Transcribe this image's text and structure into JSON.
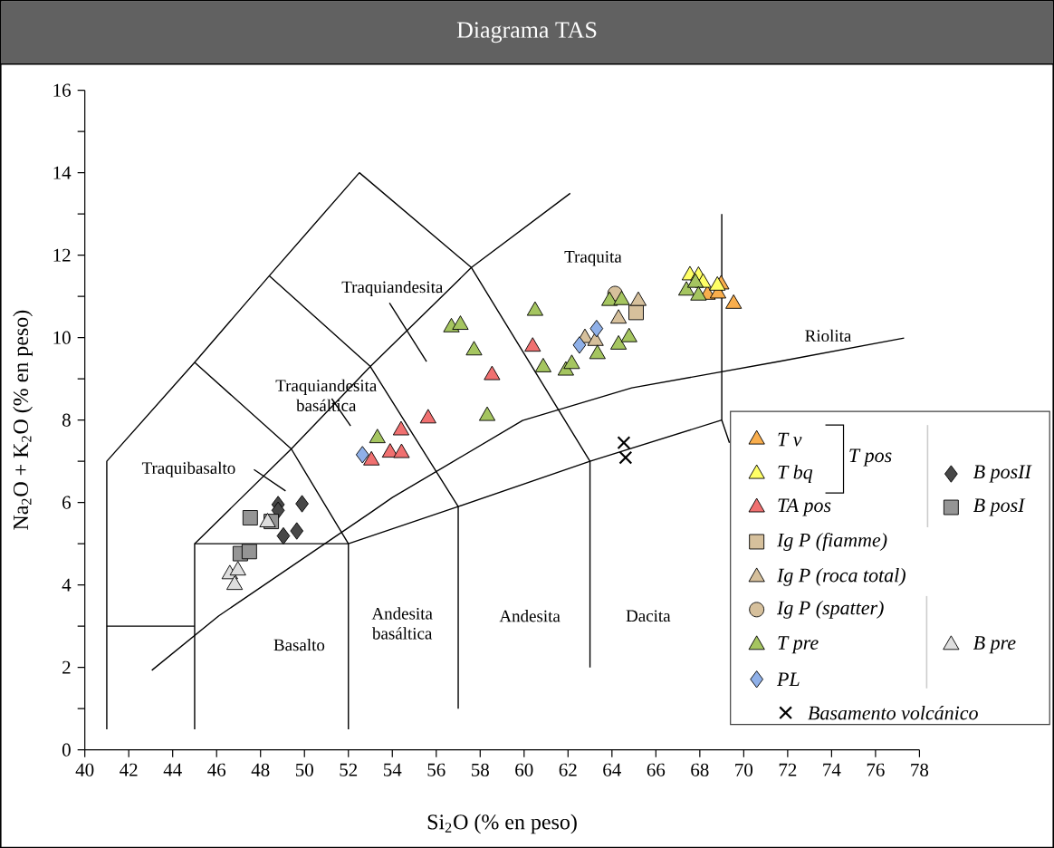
{
  "chart_data": {
    "type": "scatter",
    "title": "Diagrama TAS",
    "xlabel": "Si$_{2}$O (% en peso)",
    "ylabel": "Na$_{2}$O + K$_{2}$O (% en peso)",
    "xlim": [
      40,
      78
    ],
    "ylim": [
      0,
      16
    ],
    "xticks": [
      40,
      42,
      44,
      46,
      48,
      50,
      52,
      54,
      56,
      58,
      60,
      62,
      64,
      66,
      68,
      70,
      72,
      74,
      76,
      78
    ],
    "yticks": [
      0,
      {
        "value": 1,
        "label": null
      },
      2,
      {
        "value": 3,
        "label": null
      },
      4,
      {
        "value": 5,
        "label": null
      },
      6,
      {
        "value": 7,
        "label": null
      },
      8,
      {
        "value": 9,
        "label": null
      },
      10,
      {
        "value": 11,
        "label": null
      },
      12,
      {
        "value": 13,
        "label": null
      },
      14,
      {
        "value": 15,
        "label": null
      },
      16
    ],
    "legend": "bottom right",
    "annotations": [
      "Traquita",
      "Traquiandesita",
      "Traquiandesita basáltica",
      "Traquibasalto",
      "Riolita",
      "Basalto",
      "Andesita basáltica",
      "Andesita",
      "Dacita",
      "T pos"
    ],
    "series": [
      {
        "type": "line",
        "color": "#000000",
        "marker": "none",
        "x": [
          41,
          41,
          45,
          48.4,
          52.5,
          57.6,
          63,
          63
        ],
        "values": [
          0.5,
          7,
          9.4,
          11.5,
          14,
          11.7,
          7,
          2
        ]
      },
      {
        "type": "line",
        "color": "#000000",
        "marker": "none",
        "x": [
          41,
          45
        ],
        "values": [
          3,
          3
        ]
      },
      {
        "type": "line",
        "color": "#000000",
        "marker": "none",
        "x": [
          45,
          45,
          52,
          52
        ],
        "values": [
          0.5,
          5,
          5,
          0.5
        ]
      },
      {
        "type": "line",
        "color": "#000000",
        "marker": "none",
        "x": [
          45,
          49.4,
          52
        ],
        "values": [
          9.4,
          7.3,
          5
        ]
      },
      {
        "type": "line",
        "color": "#000000",
        "marker": "none",
        "x": [
          45,
          49.4,
          53,
          57.6,
          62.1
        ],
        "values": [
          5,
          7.3,
          9.3,
          11.7,
          13.5
        ]
      },
      {
        "type": "line",
        "color": "#000000",
        "marker": "none",
        "x": [
          52,
          57,
          63,
          69,
          69.35
        ],
        "values": [
          5,
          5.9,
          7,
          8,
          7.45
        ]
      },
      {
        "type": "line",
        "color": "#000000",
        "marker": "none",
        "x": [
          48.4,
          53,
          57,
          57
        ],
        "values": [
          11.5,
          9.3,
          5.9,
          1
        ]
      },
      {
        "type": "line",
        "color": "#000000",
        "marker": "none",
        "x": [
          69,
          69
        ],
        "values": [
          8,
          13
        ]
      },
      {
        "type": "line",
        "color": "#000000",
        "marker": "none",
        "x": [
          43.05,
          46.1,
          53.05,
          54,
          59.93,
          64.9,
          71.6,
          77.3
        ],
        "values": [
          1.93,
          3.25,
          5.77,
          6.12,
          7.99,
          8.78,
          9.42,
          9.99
        ]
      },
      {
        "type": "line",
        "color": "#000000",
        "marker": "none",
        "x": [
          53.87,
          55.56
        ],
        "values": [
          10.84,
          9.42
        ]
      },
      {
        "type": "line",
        "color": "#000000",
        "marker": "none",
        "x": [
          51.24,
          52.1
        ],
        "values": [
          8.52,
          7.86
        ]
      },
      {
        "type": "line",
        "color": "#000000",
        "marker": "none",
        "x": [
          47.7,
          49.14
        ],
        "values": [
          6.8,
          6.28
        ]
      },
      {
        "name": "T v",
        "color": "#f9ae4d",
        "marker": "triangle",
        "x": [
          68.35,
          68.83,
          68.97,
          69.54
        ],
        "values": [
          11.04,
          11.07,
          11.29,
          10.82
        ]
      },
      {
        "name": "T bq",
        "color": "#ffff66",
        "marker": "triangle",
        "x": [
          67.55,
          67.94,
          68.15,
          68.8
        ],
        "values": [
          11.51,
          11.5,
          11.33,
          11.26
        ]
      },
      {
        "name": "TA pos",
        "color": "#f07070",
        "marker": "triangle",
        "x": [
          53.05,
          53.9,
          54.42,
          54.4,
          55.63,
          58.54,
          60.39
        ],
        "values": [
          7.02,
          7.21,
          7.2,
          7.75,
          8.04,
          9.09,
          9.78
        ]
      },
      {
        "name": "Ig P (fiamme)",
        "color": "#d6c09c",
        "marker": "square",
        "x": [
          65.1
        ],
        "values": [
          10.61
        ]
      },
      {
        "name": "Ig P (roca total)",
        "color": "#d6c09c",
        "marker": "triangle",
        "x": [
          62.77,
          63.25,
          64.3,
          65.2
        ],
        "values": [
          9.99,
          9.92,
          10.46,
          10.89
        ]
      },
      {
        "name": "Ig P (spatter)",
        "color": "#d6c09c",
        "marker": "circle",
        "x": [
          64.14
        ],
        "values": [
          11.07
        ]
      },
      {
        "name": "T pre",
        "color": "#a5c560",
        "marker": "triangle",
        "x": [
          53.32,
          56.69,
          57.1,
          57.72,
          58.32,
          60.5,
          60.87,
          61.9,
          62.17,
          63.34,
          63.89,
          64.44,
          64.3,
          64.78,
          67.39,
          67.8,
          67.94
        ],
        "values": [
          7.56,
          10.25,
          10.31,
          9.69,
          8.1,
          10.65,
          9.28,
          9.2,
          9.36,
          9.6,
          10.89,
          10.91,
          9.83,
          10.01,
          11.14,
          11.33,
          11.02
        ]
      },
      {
        "name": "PL",
        "color": "#8fb0e8",
        "marker": "diamond",
        "x": [
          52.64,
          62.52,
          63.3
        ],
        "values": [
          7.16,
          9.82,
          10.22
        ]
      },
      {
        "name": "Basamento volcánico",
        "color": "#000000",
        "marker": "cross",
        "x": [
          64.54,
          64.62
        ],
        "values": [
          7.45,
          7.09
        ]
      },
      {
        "name": "B posII",
        "color": "#474747",
        "marker": "diamond",
        "x": [
          48.8,
          48.8,
          49.89,
          49.65,
          49.04
        ],
        "values": [
          5.95,
          5.81,
          5.97,
          5.31,
          5.19
        ]
      },
      {
        "name": "B posI",
        "color": "#959595",
        "marker": "square",
        "x": [
          47.53,
          48.49,
          47.08,
          47.49
        ],
        "values": [
          5.63,
          5.54,
          4.76,
          4.81
        ]
      },
      {
        "name": "B pre",
        "color": "#dedede",
        "marker": "triangle",
        "x": [
          48.32,
          46.6,
          46.97,
          46.82
        ],
        "values": [
          5.52,
          4.26,
          4.35,
          4.0
        ]
      }
    ]
  }
}
